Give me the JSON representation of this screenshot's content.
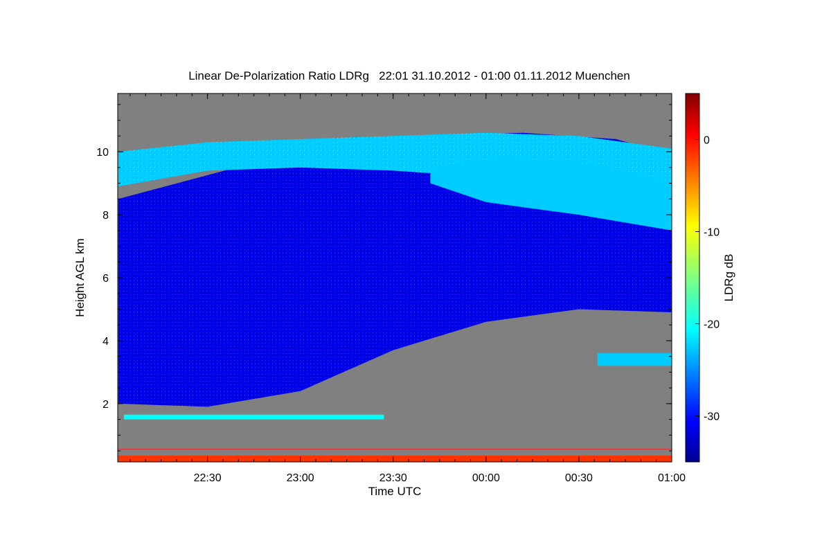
{
  "chart_data": {
    "type": "heatmap",
    "title": "Linear De-Polarization Ratio LDRg   22:01 31.10.2012 - 01:00 01.11.2012 Muenchen",
    "xlabel": "Time UTC",
    "ylabel": "Height AGL km",
    "colorbar_label": "LDRg dB",
    "x_range_hours": [
      22.0167,
      25.0
    ],
    "x_ticks": [
      {
        "value": 22.5,
        "label": "22:30"
      },
      {
        "value": 23.0,
        "label": "23:00"
      },
      {
        "value": 23.5,
        "label": "23:30"
      },
      {
        "value": 24.0,
        "label": "00:00"
      },
      {
        "value": 24.5,
        "label": "00:30"
      },
      {
        "value": 25.0,
        "label": "01:00"
      }
    ],
    "y_range": [
      0.15,
      11.85
    ],
    "y_ticks": [
      2,
      4,
      6,
      8,
      10
    ],
    "c_range": [
      -35,
      5
    ],
    "c_ticks": [
      0,
      -10,
      -20,
      -30
    ],
    "no_signal_color": "#808080",
    "colormap": [
      "#00008f",
      "#0000ff",
      "#0080ff",
      "#00ffff",
      "#80ff80",
      "#ffff00",
      "#ff8000",
      "#ff0000",
      "#800000"
    ],
    "regions": [
      {
        "name": "cirrus-body",
        "ldr_db": -31,
        "time": [
          22.02,
          22.02,
          23.1,
          23.6,
          24.2,
          24.7,
          25.0,
          25.0,
          24.5,
          24.0,
          23.5,
          23.0,
          22.5,
          22.02
        ],
        "height": [
          2.0,
          8.5,
          10.2,
          10.5,
          10.6,
          10.4,
          9.9,
          4.9,
          5.0,
          4.6,
          3.7,
          2.4,
          1.9,
          2.0
        ]
      },
      {
        "name": "cirrus-top",
        "ldr_db": -22,
        "time": [
          22.02,
          22.5,
          23.0,
          23.5,
          24.0,
          24.5,
          25.0,
          25.0,
          24.5,
          24.0,
          23.5,
          23.0,
          22.5,
          22.02
        ],
        "height": [
          10.0,
          10.3,
          10.4,
          10.5,
          10.6,
          10.5,
          10.1,
          9.0,
          9.4,
          9.2,
          9.4,
          9.5,
          9.4,
          8.9
        ]
      },
      {
        "name": "upper-ice-band",
        "ldr_db": -22,
        "time": [
          23.7,
          24.1,
          24.6,
          25.0,
          25.0,
          24.5,
          24.0,
          23.7
        ],
        "height": [
          9.5,
          9.8,
          9.6,
          9.0,
          7.5,
          8.0,
          8.4,
          9.0
        ]
      },
      {
        "name": "low-level-band",
        "ldr_db": -20,
        "time": [
          22.05,
          23.45,
          23.45,
          22.05
        ],
        "height": [
          1.65,
          1.65,
          1.5,
          1.5
        ]
      },
      {
        "name": "lower-cloud-patch",
        "ldr_db": -22,
        "time": [
          24.6,
          25.0,
          25.0,
          24.6
        ],
        "height": [
          3.6,
          3.6,
          3.2,
          3.2
        ]
      },
      {
        "name": "surface-layer",
        "ldr_db": -2,
        "time": [
          22.02,
          25.0,
          25.0,
          22.02
        ],
        "height": [
          0.35,
          0.35,
          0.15,
          0.15
        ]
      }
    ]
  }
}
